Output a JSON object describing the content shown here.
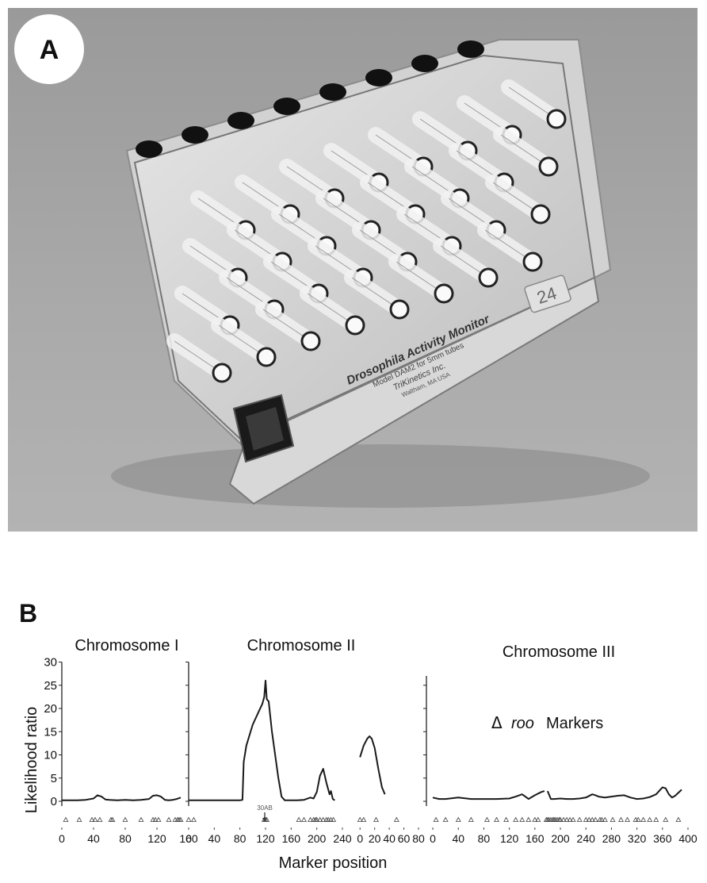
{
  "panel_a": {
    "letter": "A",
    "device_text": [
      "Drosophila Activity Monitor",
      "Model DAM2 for 5mm tubes",
      "TriKinetics Inc.",
      "Waltham, MA USA"
    ],
    "device_number": "24"
  },
  "panel_b": {
    "letter": "B",
    "ylabel": "Likelihood ratio",
    "xlabel": "Marker position",
    "annotation_30ab": "30AB",
    "annotation_roo": "roo",
    "annotation_markers": "Markers",
    "delta_symbol": "Δ",
    "chromosome_titles": [
      "Chromosome I",
      "Chromosome II",
      "Chromosome III"
    ]
  },
  "chart_data": [
    {
      "type": "line",
      "title": "Chromosome I",
      "xlabel": "Marker position",
      "ylabel": "Likelihood ratio",
      "xlim": [
        0,
        160
      ],
      "ylim": [
        -3,
        30
      ],
      "xticks": [
        0,
        40,
        80,
        120,
        160
      ],
      "yticks": [
        0,
        5,
        10,
        15,
        20,
        25,
        30
      ],
      "grid": false,
      "series": [
        {
          "x": [
            0,
            10,
            20,
            30,
            40,
            45,
            50,
            55,
            60,
            70,
            80,
            90,
            100,
            110,
            115,
            120,
            125,
            130,
            135,
            140,
            145,
            150
          ],
          "y": [
            0.2,
            0.2,
            0.2,
            0.3,
            0.6,
            1.3,
            1.0,
            0.4,
            0.3,
            0.2,
            0.3,
            0.2,
            0.3,
            0.5,
            1.2,
            1.3,
            1.0,
            0.3,
            0.2,
            0.3,
            0.5,
            0.8
          ]
        }
      ],
      "markers_x": [
        5,
        22,
        38,
        42,
        48,
        62,
        64,
        80,
        100,
        115,
        118,
        122,
        135,
        143,
        146,
        148,
        150
      ]
    },
    {
      "type": "line",
      "title": "Chromosome II",
      "xlabel": "Marker position",
      "ylabel": "Likelihood ratio",
      "xlim": [
        0,
        240
      ],
      "ylim": [
        -3,
        30
      ],
      "xticks": [
        0,
        40,
        80,
        120,
        160,
        200,
        240
      ],
      "yticks": [
        0,
        5,
        10,
        15,
        20,
        25,
        30
      ],
      "grid": false,
      "series": [
        {
          "x": [
            0,
            20,
            40,
            60,
            80,
            84,
            86,
            90,
            100,
            110,
            115,
            118,
            120,
            122,
            125,
            130,
            140,
            145,
            150,
            160,
            170,
            180,
            190,
            195,
            200,
            205,
            210,
            215,
            220,
            222,
            225,
            228
          ],
          "y": [
            0.2,
            0.2,
            0.2,
            0.2,
            0.2,
            0.3,
            8.5,
            12,
            16.5,
            19.5,
            21,
            22.5,
            26,
            22,
            21.5,
            15,
            5,
            1,
            0.2,
            0.2,
            0.2,
            0.3,
            0.8,
            0.6,
            2,
            5.5,
            7,
            4,
            1.5,
            2.2,
            0.5,
            0.2
          ]
        }
      ],
      "markers_x": [
        0,
        8,
        118,
        120,
        122,
        172,
        180,
        190,
        195,
        198,
        200,
        205,
        210,
        215,
        218,
        222,
        226
      ]
    },
    {
      "type": "line",
      "title": "",
      "xlabel": "Marker position",
      "ylabel": "Likelihood ratio",
      "xlim": [
        -10,
        80
      ],
      "ylim": [
        -3,
        30
      ],
      "xticks": [
        0,
        20,
        40,
        60,
        80
      ],
      "yticks": [
        0,
        5,
        10,
        15,
        20,
        25,
        30
      ],
      "grid": false,
      "series": [
        {
          "x": [
            0,
            5,
            10,
            13,
            16,
            20,
            25,
            30,
            34
          ],
          "y": [
            9.5,
            12,
            13.5,
            14,
            13.5,
            11.5,
            7,
            3,
            1.5
          ]
        }
      ],
      "markers_x": [
        0,
        5,
        22,
        50
      ]
    },
    {
      "type": "line",
      "title": "Chromosome III",
      "xlabel": "Marker position",
      "ylabel": "Likelihood ratio",
      "xlim": [
        -10,
        400
      ],
      "ylim": [
        -3,
        30
      ],
      "xticks": [
        0,
        40,
        80,
        120,
        160,
        200,
        240,
        280,
        320,
        360,
        400
      ],
      "yticks": [
        0,
        5,
        10,
        15,
        20,
        25,
        30
      ],
      "grid": false,
      "series": [
        {
          "x": [
            0,
            10,
            20,
            40,
            60,
            80,
            100,
            120,
            130,
            140,
            145,
            150,
            160,
            170,
            175
          ],
          "y": [
            0.8,
            0.5,
            0.5,
            0.8,
            0.5,
            0.5,
            0.5,
            0.6,
            1,
            1.5,
            1.0,
            0.5,
            1.3,
            2,
            2.2
          ]
        },
        {
          "x": [
            180,
            185,
            190,
            200,
            210,
            220,
            230,
            240,
            250,
            255,
            260,
            270,
            280,
            290,
            300,
            310,
            320,
            330,
            340,
            350,
            360,
            365,
            370,
            375,
            380,
            390
          ],
          "y": [
            2.2,
            0.5,
            0.5,
            0.6,
            0.5,
            0.5,
            0.6,
            0.8,
            1.5,
            1.3,
            1,
            0.8,
            1,
            1.2,
            1.3,
            0.8,
            0.5,
            0.6,
            0.9,
            1.5,
            3,
            2.8,
            1.5,
            0.8,
            1.2,
            2.5
          ]
        }
      ],
      "markers_x": [
        5,
        20,
        40,
        60,
        85,
        100,
        115,
        130,
        140,
        150,
        160,
        165,
        178,
        180,
        182,
        185,
        188,
        190,
        192,
        195,
        198,
        200,
        205,
        210,
        215,
        220,
        230,
        240,
        245,
        250,
        255,
        262,
        265,
        270,
        282,
        295,
        305,
        318,
        322,
        330,
        340,
        350,
        365,
        385
      ]
    }
  ]
}
